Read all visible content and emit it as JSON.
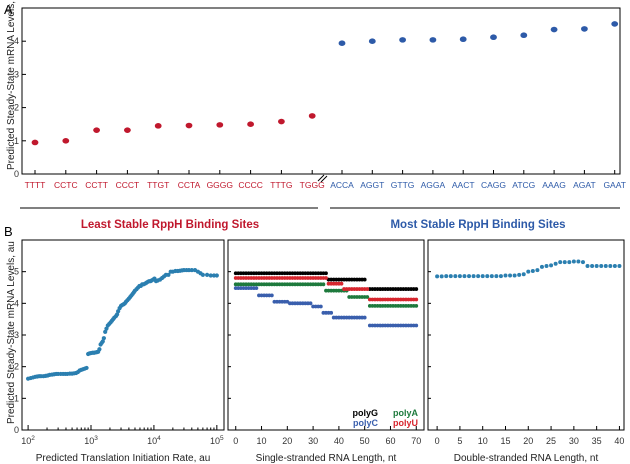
{
  "panel_letters": {
    "a": "A",
    "b": "B"
  },
  "colors": {
    "red": "#c0182d",
    "blue": "#2d5aa8",
    "teal": "#2b7fb0",
    "black": "#000000",
    "green": "#1e7a3d",
    "polyC": "#3a5fad",
    "polyU": "#d7262e"
  },
  "chart_data": [
    {
      "type": "scatter",
      "panel": "A",
      "ylabel": "Predicted Steady-State mRNA Levels, au",
      "ylim": [
        0,
        5
      ],
      "yticks": [
        "0",
        "1",
        "2",
        "3",
        "4"
      ],
      "categories": [
        "TTTT",
        "CCTC",
        "CCTT",
        "CCCT",
        "TTGT",
        "CCTA",
        "GGGG",
        "CCCC",
        "TTTG",
        "TGGG",
        "ACCA",
        "AGGT",
        "GTTG",
        "AGGA",
        "AACT",
        "CAGG",
        "ATCG",
        "AAAG",
        "AGAT",
        "GAAT"
      ],
      "series": [
        {
          "name": "Least Stable RppH Binding Sites",
          "categories": [
            "TTTT",
            "CCTC",
            "CCTT",
            "CCCT",
            "TTGT",
            "CCTA",
            "GGGG",
            "CCCC",
            "TTTG",
            "TGGG"
          ],
          "values": [
            0.95,
            1.0,
            1.32,
            1.32,
            1.45,
            1.46,
            1.48,
            1.5,
            1.58,
            1.75
          ]
        },
        {
          "name": "Most Stable RppH Binding Sites",
          "categories": [
            "ACCA",
            "AGGT",
            "GTTG",
            "AGGA",
            "AACT",
            "CAGG",
            "ATCG",
            "AAAG",
            "AGAT",
            "GAAT"
          ],
          "values": [
            3.94,
            4.0,
            4.04,
            4.04,
            4.06,
            4.12,
            4.18,
            4.35,
            4.37,
            4.52
          ]
        }
      ]
    },
    {
      "type": "scatter",
      "panel": "B1",
      "ylabel": "Predicted Steady-State mRNA Levels, au",
      "xlabel": "Predicted Translation Initiation Rate, au",
      "xscale": "log",
      "xlim": [
        80,
        130000
      ],
      "xtick_base": "10",
      "xtick_exponents": [
        "2",
        "3",
        "4",
        "5"
      ],
      "ylim": [
        0,
        6
      ],
      "yticks": [
        "0",
        "1",
        "2",
        "3",
        "4",
        "5"
      ],
      "series": [
        {
          "x": [
            100,
            110,
            120,
            130,
            140,
            150,
            160,
            175,
            190,
            205,
            220,
            240,
            260,
            280,
            300,
            330,
            360,
            390,
            420,
            460,
            500,
            540,
            580,
            620,
            660,
            700,
            750,
            800,
            850,
            900,
            950,
            1000,
            1060,
            1120,
            1180,
            1240,
            1300,
            1360,
            1420,
            1480,
            1540,
            1600,
            1680,
            1760,
            1850,
            1950,
            2050,
            2150,
            2250,
            2350,
            2500,
            2600,
            2700,
            2850,
            3000,
            3150,
            3300,
            3450,
            3600,
            3800,
            4000,
            4200,
            4400,
            4600,
            4800,
            5000,
            5300,
            5600,
            5900,
            6200,
            6500,
            6800,
            7200,
            7600,
            8000,
            8400,
            8800,
            9200,
            9700,
            10200,
            10800,
            11500,
            12500,
            13500,
            14500,
            15500,
            17000,
            18500,
            20000,
            22000,
            24000,
            26000,
            28000,
            30000,
            33000,
            36000,
            40000,
            45000,
            50000,
            55000,
            60000,
            70000,
            80000,
            90000,
            100000
          ],
          "y": [
            1.62,
            1.64,
            1.66,
            1.68,
            1.69,
            1.7,
            1.7,
            1.7,
            1.71,
            1.72,
            1.74,
            1.75,
            1.76,
            1.77,
            1.77,
            1.77,
            1.77,
            1.77,
            1.77,
            1.78,
            1.78,
            1.79,
            1.8,
            1.83,
            1.88,
            1.9,
            1.92,
            1.94,
            1.96,
            2.4,
            2.42,
            2.43,
            2.44,
            2.44,
            2.45,
            2.46,
            2.47,
            2.55,
            2.7,
            2.75,
            2.8,
            2.9,
            3.1,
            3.2,
            3.3,
            3.35,
            3.4,
            3.45,
            3.5,
            3.55,
            3.6,
            3.65,
            3.75,
            3.85,
            3.92,
            3.95,
            3.97,
            4.0,
            4.05,
            4.1,
            4.15,
            4.2,
            4.25,
            4.3,
            4.35,
            4.4,
            4.45,
            4.5,
            4.55,
            4.55,
            4.6,
            4.6,
            4.62,
            4.65,
            4.68,
            4.7,
            4.7,
            4.72,
            4.75,
            4.78,
            4.7,
            4.72,
            4.75,
            4.8,
            4.85,
            4.9,
            4.9,
            5.0,
            5.0,
            5.02,
            5.02,
            5.03,
            5.04,
            5.05,
            5.05,
            5.05,
            5.05,
            5.05,
            5.0,
            4.95,
            4.9,
            4.9,
            4.88,
            4.88,
            4.88
          ]
        }
      ]
    },
    {
      "type": "line",
      "panel": "B2",
      "xlabel": "Single-stranded RNA Length, nt",
      "xlim": [
        -3,
        73
      ],
      "xticks": [
        "0",
        "10",
        "20",
        "30",
        "40",
        "50",
        "60",
        "70"
      ],
      "ylim": [
        0,
        6
      ],
      "series": [
        {
          "name": "polyG",
          "segments": [
            [
              0,
              35,
              4.95
            ],
            [
              36,
              50,
              4.75
            ],
            [
              52,
              70,
              4.45
            ]
          ]
        },
        {
          "name": "polyA",
          "segments": [
            [
              0,
              34,
              4.6
            ],
            [
              35,
              43,
              4.4
            ],
            [
              44,
              51,
              4.2
            ],
            [
              52,
              70,
              3.92
            ]
          ]
        },
        {
          "name": "polyC",
          "segments": [
            [
              0,
              8,
              4.48
            ],
            [
              9,
              14,
              4.25
            ],
            [
              15,
              20,
              4.05
            ],
            [
              21,
              29,
              4.0
            ],
            [
              30,
              33,
              3.9
            ],
            [
              34,
              37,
              3.7
            ],
            [
              38,
              50,
              3.55
            ],
            [
              52,
              70,
              3.3
            ]
          ]
        },
        {
          "name": "polyU",
          "segments": [
            [
              0,
              35,
              4.8
            ],
            [
              36,
              41,
              4.62
            ],
            [
              42,
              51,
              4.45
            ],
            [
              52,
              70,
              4.12
            ]
          ]
        }
      ],
      "legend": {
        "placement": "bottom-right",
        "labels": [
          "polyG",
          "polyA",
          "polyC",
          "polyU"
        ]
      }
    },
    {
      "type": "scatter",
      "panel": "B3",
      "xlabel": "Double-stranded RNA Length, nt",
      "xlim": [
        -2,
        41
      ],
      "xticks": [
        "0",
        "5",
        "10",
        "15",
        "20",
        "25",
        "30",
        "35",
        "40"
      ],
      "ylim": [
        0,
        6
      ],
      "series": [
        {
          "x": [
            0,
            1,
            2,
            3,
            4,
            5,
            6,
            7,
            8,
            9,
            10,
            11,
            12,
            13,
            14,
            15,
            16,
            17,
            18,
            19,
            20,
            21,
            22,
            23,
            24,
            25,
            26,
            27,
            28,
            29,
            30,
            31,
            32,
            33,
            34,
            35,
            36,
            37,
            38,
            39,
            40
          ],
          "y": [
            4.85,
            4.85,
            4.86,
            4.86,
            4.86,
            4.86,
            4.86,
            4.86,
            4.86,
            4.86,
            4.86,
            4.86,
            4.86,
            4.86,
            4.86,
            4.88,
            4.88,
            4.88,
            4.9,
            4.92,
            5.0,
            5.02,
            5.05,
            5.15,
            5.18,
            5.2,
            5.25,
            5.3,
            5.3,
            5.3,
            5.32,
            5.32,
            5.3,
            5.18,
            5.18,
            5.18,
            5.18,
            5.18,
            5.18,
            5.18,
            5.18
          ]
        }
      ]
    }
  ]
}
